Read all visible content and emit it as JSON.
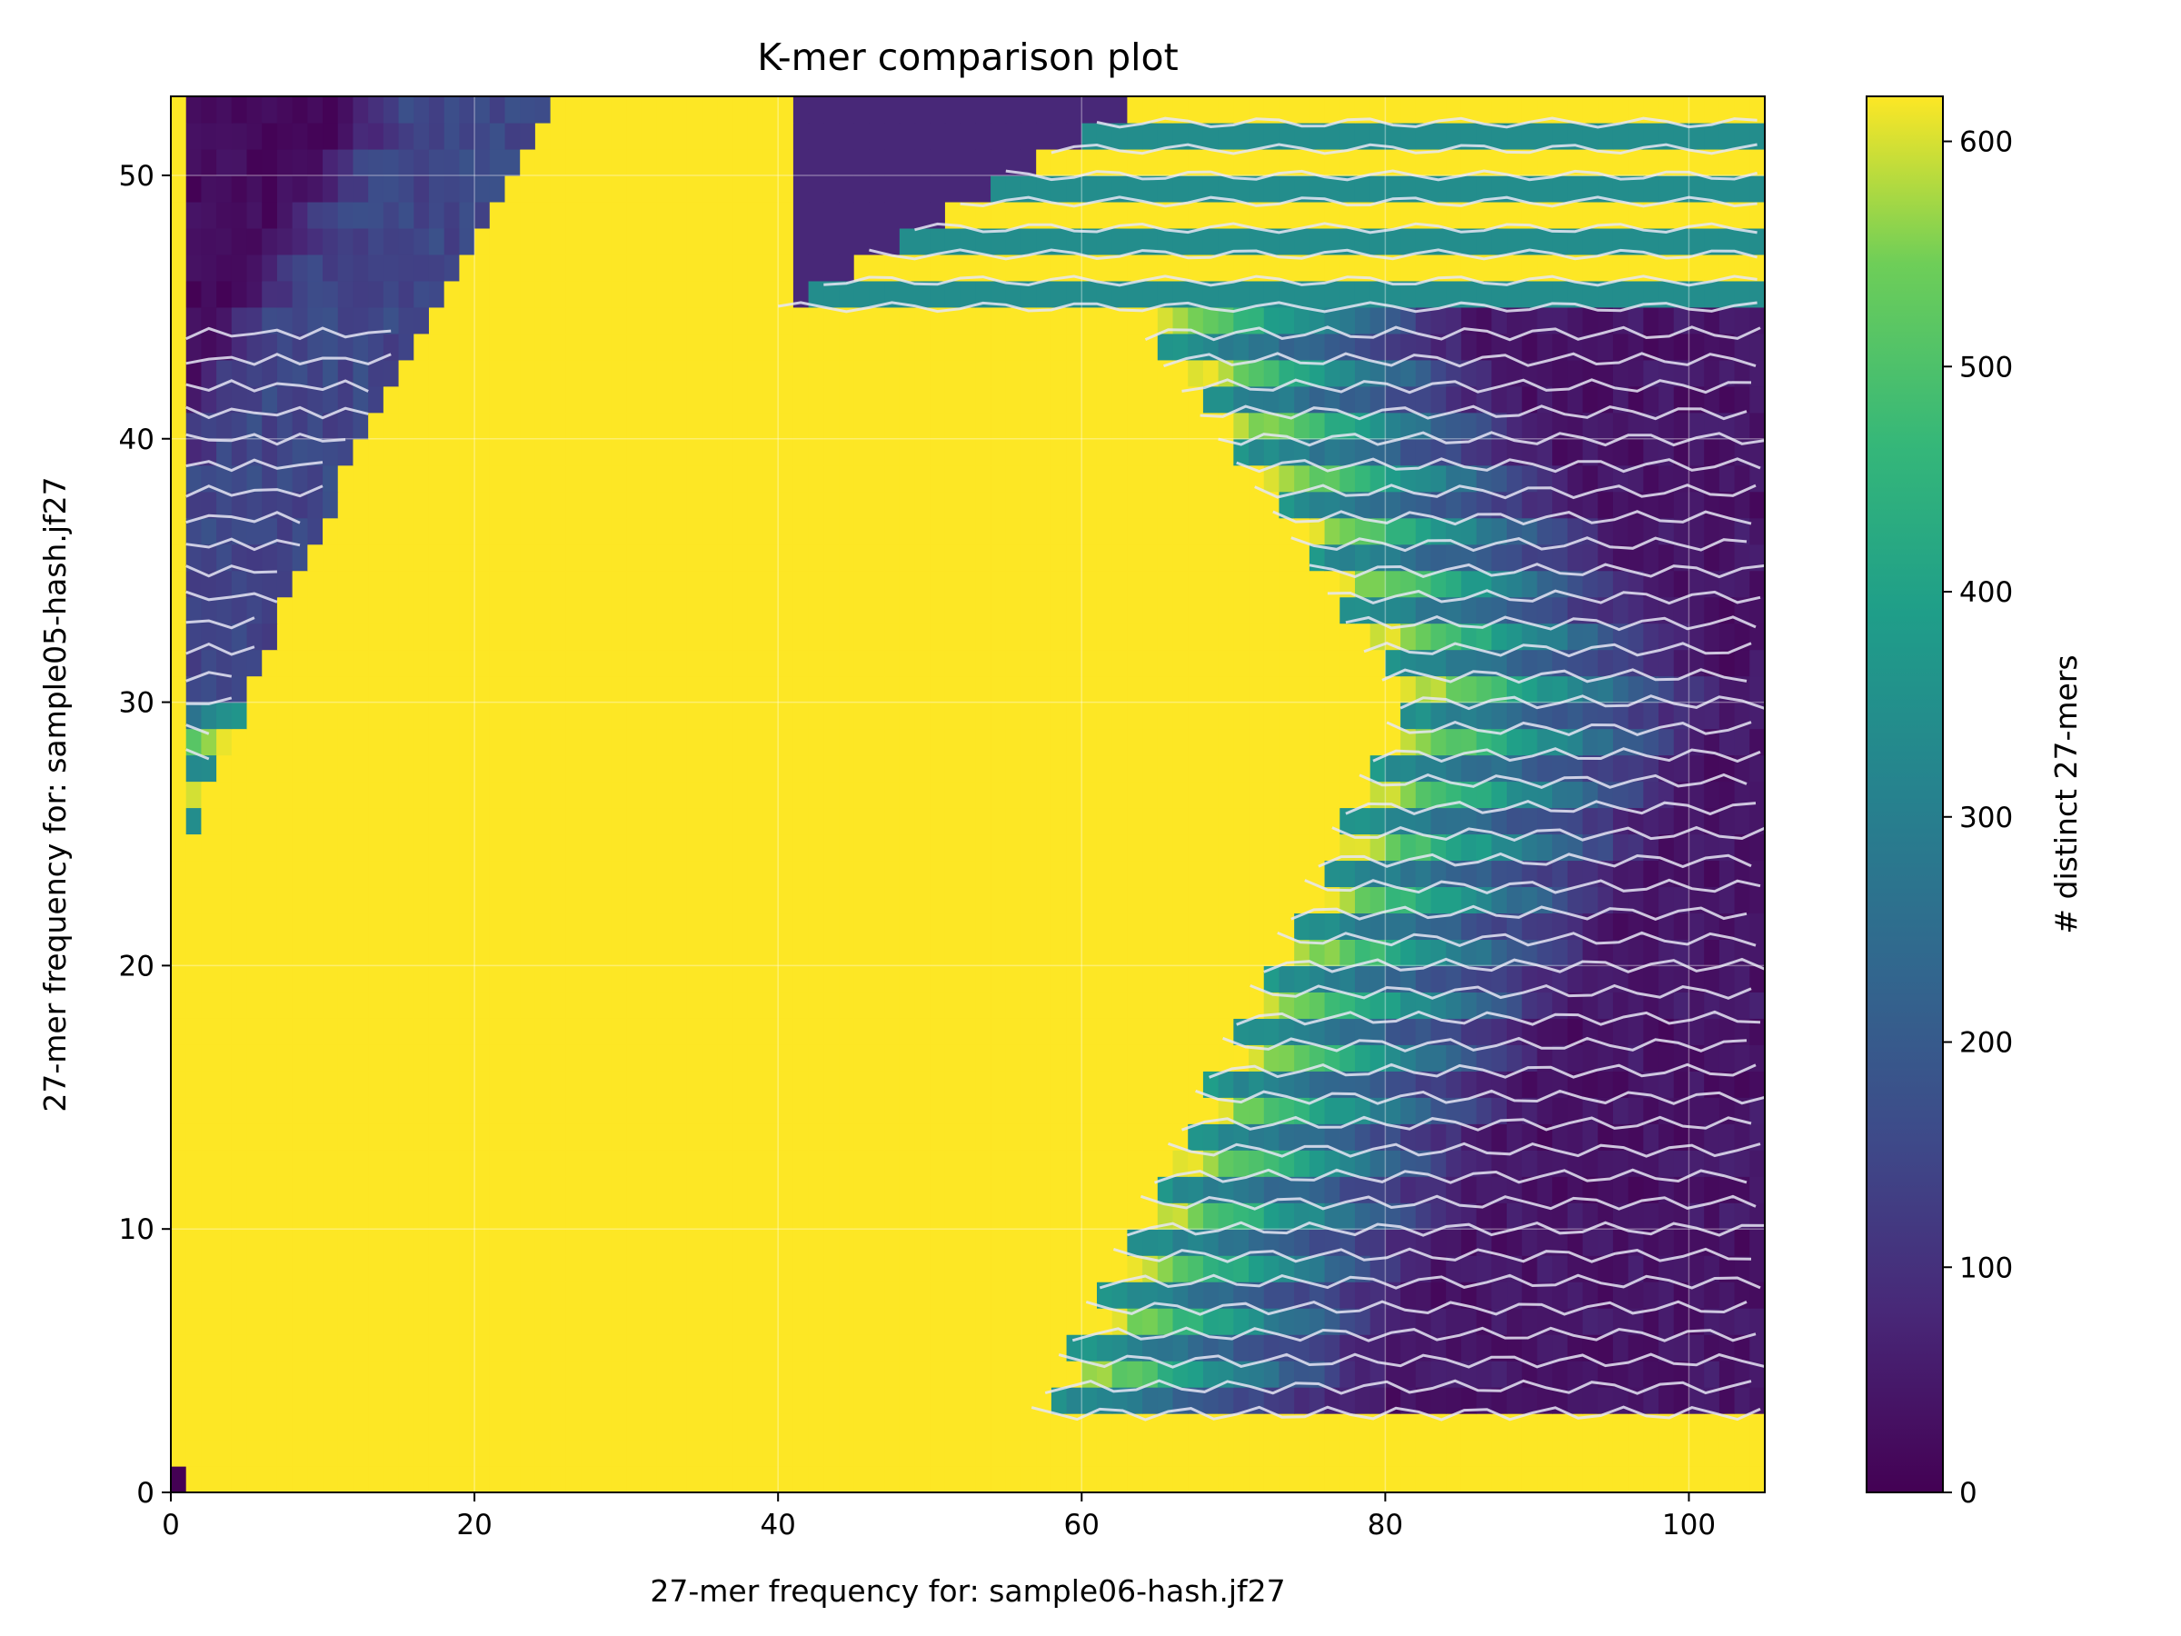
{
  "chart_data": {
    "type": "heatmap",
    "title": "K-mer comparison plot",
    "xlabel": "27-mer frequency for: sample06-hash.jf27",
    "ylabel": "27-mer frequency for: sample05-hash.jf27",
    "xlim": [
      0,
      105
    ],
    "ylim": [
      0,
      53
    ],
    "x_ticks": [
      "0",
      "20",
      "40",
      "60",
      "80",
      "100"
    ],
    "y_ticks": [
      "0",
      "10",
      "20",
      "30",
      "40",
      "50"
    ],
    "grid": true,
    "colormap": "viridis",
    "colorbar": {
      "label": "# distinct 27-mers",
      "range": [
        0,
        620
      ],
      "ticks": [
        "0",
        "100",
        "200",
        "300",
        "400",
        "500",
        "600"
      ]
    },
    "contours": {
      "overlay": true,
      "color": "#e6e6f5"
    },
    "description_values": {
      "saturated_region": "counts >= 620 (yellow) covering low sample06 frequency and y below ~45",
      "low_region_top_left": "counts near 0-100 for x 1-40, y 30-53",
      "low_region_bottom_right": "counts near 0-150 for x 75-105, y 3-30",
      "striped_rows": "alternating high/low rows at integer y values"
    }
  },
  "colors": {
    "viridis_low": "#440154",
    "viridis_mid": "#21918c",
    "viridis_high": "#fde725"
  }
}
